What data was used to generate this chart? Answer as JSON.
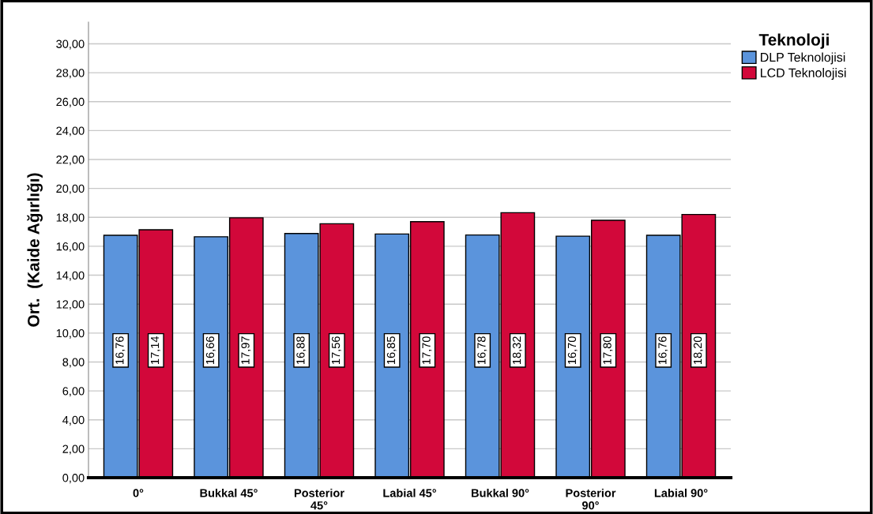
{
  "chart_data": {
    "type": "bar",
    "ylabel": "Ort.  (Kaide Ağırlığı)",
    "legend_title": "Teknoloji",
    "categories": [
      "0°",
      "Bukkal 45°",
      "Posterior\n45°",
      "Labial 45°",
      "Bukkal 90°",
      "Posterior\n90°",
      "Labial 90°"
    ],
    "series": [
      {
        "name": "DLP Teknolojisi",
        "color": "#5b94dc",
        "values": [
          16.76,
          16.66,
          16.88,
          16.85,
          16.78,
          16.7,
          16.76
        ],
        "value_labels": [
          "16,76",
          "16,66",
          "16,88",
          "16,85",
          "16,78",
          "16,70",
          "16,76"
        ]
      },
      {
        "name": "LCD Teknolojisi",
        "color": "#d2083a",
        "values": [
          17.14,
          17.97,
          17.56,
          17.7,
          18.32,
          17.8,
          18.2
        ],
        "value_labels": [
          "17,14",
          "17,97",
          "17,56",
          "17,70",
          "18,32",
          "17,80",
          "18,20"
        ]
      }
    ],
    "ylim": [
      0,
      31.5
    ],
    "yticks": [
      {
        "value": 0,
        "label": "0,00"
      },
      {
        "value": 2,
        "label": "2,00"
      },
      {
        "value": 4,
        "label": "4,00"
      },
      {
        "value": 6,
        "label": "6,00"
      },
      {
        "value": 8,
        "label": "8,00"
      },
      {
        "value": 10,
        "label": "10,00"
      },
      {
        "value": 12,
        "label": "12,00"
      },
      {
        "value": 14,
        "label": "14,00"
      },
      {
        "value": 16,
        "label": "16,00"
      },
      {
        "value": 18,
        "label": "18,00"
      },
      {
        "value": 20,
        "label": "20,00"
      },
      {
        "value": 22,
        "label": "22,00"
      },
      {
        "value": 24,
        "label": "24,00"
      },
      {
        "value": 26,
        "label": "26,00"
      },
      {
        "value": 28,
        "label": "28,00"
      },
      {
        "value": 30,
        "label": "30,00"
      }
    ],
    "grid": "y",
    "legend": "top right"
  }
}
